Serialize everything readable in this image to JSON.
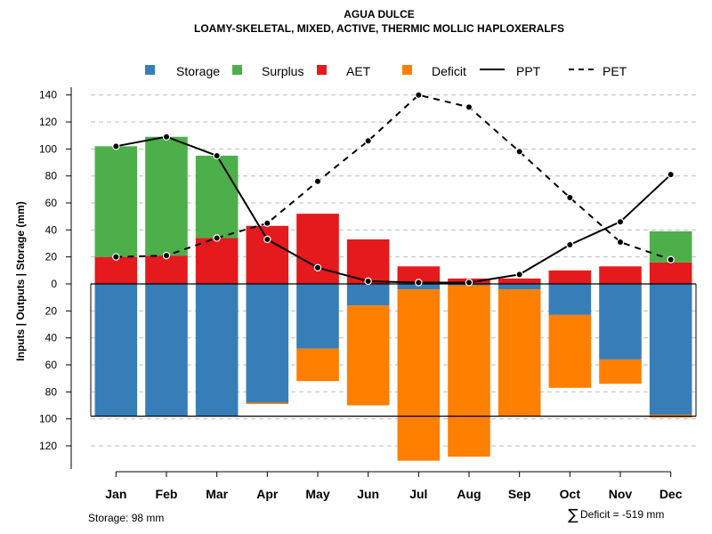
{
  "chart_data": {
    "type": "bar",
    "title": "AGUA DULCE",
    "subtitle": "LOAMY-SKELETAL, MIXED, ACTIVE, THERMIC MOLLIC HAPLOXERALFS",
    "ylabel": "Inputs | Outputs | Storage    (mm)",
    "ylim": [
      -140,
      140
    ],
    "yticks": [
      140,
      120,
      100,
      80,
      60,
      40,
      20,
      0,
      -20,
      -40,
      -60,
      -80,
      -100,
      -120
    ],
    "ytick_labels": [
      "140",
      "120",
      "100",
      "80",
      "60",
      "40",
      "20",
      "0",
      "20",
      "40",
      "60",
      "80",
      "100",
      "120"
    ],
    "categories": [
      "Jan",
      "Feb",
      "Mar",
      "Apr",
      "May",
      "Jun",
      "Jul",
      "Aug",
      "Sep",
      "Oct",
      "Nov",
      "Dec"
    ],
    "series": [
      {
        "name": "Storage",
        "color": "#377eb8",
        "values": [
          98,
          98,
          98,
          88,
          48,
          16,
          4,
          1,
          4,
          23,
          56,
          97
        ]
      },
      {
        "name": "Surplus",
        "color": "#4daf4a",
        "values": [
          82,
          88,
          61,
          0,
          0,
          0,
          0,
          0,
          0,
          0,
          0,
          23
        ]
      },
      {
        "name": "AET",
        "color": "#e41a1c",
        "values": [
          20,
          21,
          34,
          43,
          52,
          33,
          13,
          4,
          4,
          10,
          13,
          16
        ]
      },
      {
        "name": "Deficit",
        "color": "#ff7f00",
        "values": [
          0,
          0,
          0,
          1,
          24,
          74,
          127,
          127,
          94,
          54,
          18,
          2
        ]
      },
      {
        "name": "PPT",
        "color": "#000000",
        "style": "solid",
        "values": [
          102,
          109,
          95,
          33,
          12,
          2,
          1,
          1,
          7,
          29,
          46,
          81
        ]
      },
      {
        "name": "PET",
        "color": "#000000",
        "style": "dashed",
        "values": [
          20,
          21,
          34,
          45,
          76,
          106,
          140,
          131,
          98,
          64,
          31,
          18
        ]
      }
    ],
    "storage_capacity": 98,
    "legend_position": "top",
    "grid": true,
    "storage_note": "Storage: 98 mm",
    "deficit_note": "Deficit = -519 mm",
    "sum_symbol": "∑"
  }
}
